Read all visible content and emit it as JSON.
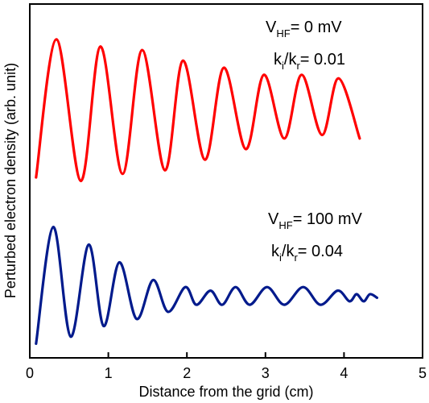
{
  "chart_data": {
    "type": "line",
    "title": "",
    "xlabel": "Distance from the grid (cm)",
    "ylabel": "Perturbed electron density (arb. unit)",
    "xlim": [
      0,
      5
    ],
    "ylim": [
      0,
      1
    ],
    "xticks": [
      0,
      1,
      2,
      3,
      4,
      5
    ],
    "yticks": [],
    "grid": false,
    "legend": "none",
    "series": [
      {
        "color": "#ff0000",
        "annotation": {
          "v_main": "V",
          "v_sub": "HF",
          "v_value": "= 0 mV",
          "k_main1": "k",
          "k_sub1": "i",
          "k_mid": "/k",
          "k_sub2": "r",
          "k_value": "= 0.01"
        },
        "peaks": [
          {
            "x": 0.34,
            "y": 0.9
          },
          {
            "x": 0.9,
            "y": 0.88
          },
          {
            "x": 1.43,
            "y": 0.87
          },
          {
            "x": 1.95,
            "y": 0.84
          },
          {
            "x": 2.47,
            "y": 0.82
          },
          {
            "x": 2.98,
            "y": 0.8
          },
          {
            "x": 3.46,
            "y": 0.8
          },
          {
            "x": 3.93,
            "y": 0.79
          }
        ],
        "troughs": [
          {
            "x": 0.08,
            "y": 0.51
          },
          {
            "x": 0.65,
            "y": 0.5
          },
          {
            "x": 1.18,
            "y": 0.52
          },
          {
            "x": 1.72,
            "y": 0.53
          },
          {
            "x": 2.23,
            "y": 0.56
          },
          {
            "x": 2.75,
            "y": 0.59
          },
          {
            "x": 3.24,
            "y": 0.62
          },
          {
            "x": 3.72,
            "y": 0.63
          },
          {
            "x": 4.2,
            "y": 0.62
          }
        ]
      },
      {
        "color": "#001a8c",
        "annotation": {
          "v_main": "V",
          "v_sub": "HF",
          "v_value": "= 100 mV",
          "k_main1": "k",
          "k_sub1": "i",
          "k_mid": "/k",
          "k_sub2": "r",
          "k_value": "= 0.04"
        },
        "peaks": [
          {
            "x": 0.3,
            "y": 0.37
          },
          {
            "x": 0.75,
            "y": 0.32
          },
          {
            "x": 1.14,
            "y": 0.27
          },
          {
            "x": 1.57,
            "y": 0.22
          },
          {
            "x": 1.98,
            "y": 0.2
          },
          {
            "x": 2.3,
            "y": 0.19
          },
          {
            "x": 2.62,
            "y": 0.2
          },
          {
            "x": 3.02,
            "y": 0.2
          },
          {
            "x": 3.48,
            "y": 0.2
          },
          {
            "x": 3.92,
            "y": 0.19
          },
          {
            "x": 4.16,
            "y": 0.18
          },
          {
            "x": 4.33,
            "y": 0.18
          }
        ],
        "troughs": [
          {
            "x": 0.08,
            "y": 0.04
          },
          {
            "x": 0.52,
            "y": 0.06
          },
          {
            "x": 0.94,
            "y": 0.09
          },
          {
            "x": 1.36,
            "y": 0.11
          },
          {
            "x": 1.76,
            "y": 0.13
          },
          {
            "x": 2.12,
            "y": 0.15
          },
          {
            "x": 2.45,
            "y": 0.15
          },
          {
            "x": 2.8,
            "y": 0.15
          },
          {
            "x": 3.24,
            "y": 0.15
          },
          {
            "x": 3.7,
            "y": 0.15
          },
          {
            "x": 4.07,
            "y": 0.16
          },
          {
            "x": 4.25,
            "y": 0.16
          },
          {
            "x": 4.42,
            "y": 0.17
          }
        ]
      }
    ]
  }
}
